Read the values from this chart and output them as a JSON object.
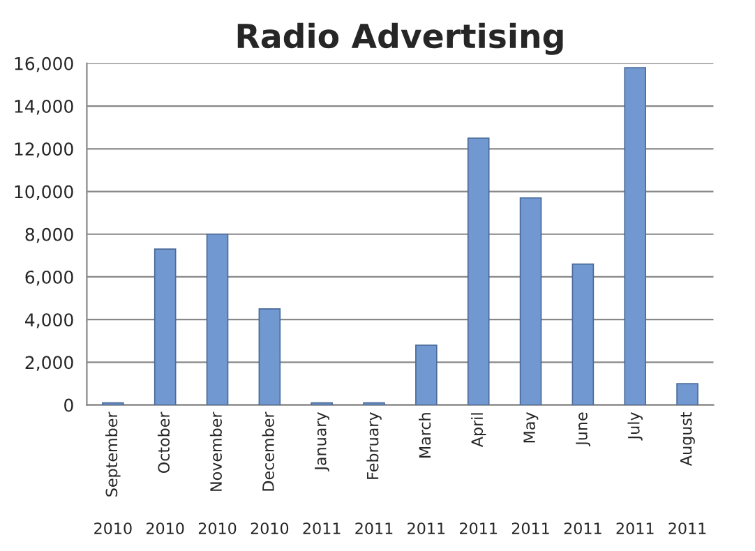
{
  "chart_data": {
    "type": "bar",
    "title": "Radio Advertising",
    "categories": [
      "September",
      "October",
      "November",
      "December",
      "January",
      "February",
      "March",
      "April",
      "May",
      "June",
      "July",
      "August"
    ],
    "values": [
      100,
      7300,
      8000,
      4500,
      100,
      100,
      2800,
      12500,
      9700,
      6600,
      15800,
      1000
    ],
    "color": "#7198d0",
    "ylim": [
      0,
      16000
    ],
    "yticks": [
      {
        "value": 0,
        "label": "0"
      },
      {
        "value": 2000,
        "label": "2,000"
      },
      {
        "value": 4000,
        "label": "4,000"
      },
      {
        "value": 6000,
        "label": "6,000"
      },
      {
        "value": 8000,
        "label": "8,000"
      },
      {
        "value": 10000,
        "label": "10,000"
      },
      {
        "value": 12000,
        "label": "12,000"
      },
      {
        "value": 14000,
        "label": "14,000"
      },
      {
        "value": 16000,
        "label": "16,000"
      }
    ],
    "grid": "y",
    "annotations": [
      "2010",
      "2010",
      "2010",
      "2010",
      "2011",
      "2011",
      "2011",
      "2011",
      "2011",
      "2011",
      "2011",
      "2011"
    ]
  }
}
